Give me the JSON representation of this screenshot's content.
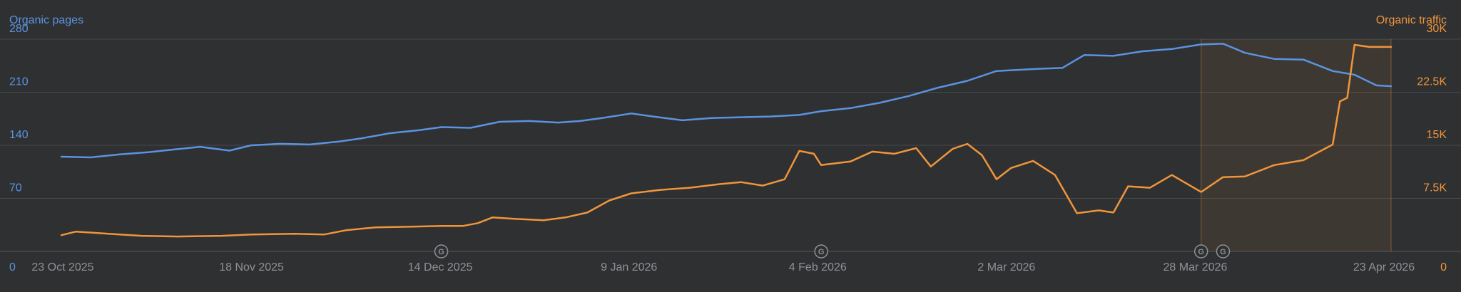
{
  "chart_data": {
    "type": "line",
    "left_axis_title": "Organic pages",
    "right_axis_title": "Organic traffic",
    "y_left_ticks": [
      "0",
      "70",
      "140",
      "210",
      "280"
    ],
    "y_left_range": [
      0,
      280
    ],
    "y_right_ticks": [
      "0",
      "7.5K",
      "15K",
      "22.5K",
      "30K"
    ],
    "y_right_range": [
      0,
      30000
    ],
    "x_tick_labels": [
      "23 Oct 2025",
      "18 Nov 2025",
      "14 Dec 2025",
      "9 Jan 2026",
      "4 Feb 2026",
      "2 Mar 2026",
      "28 Mar 2026",
      "23 Apr 2026"
    ],
    "x_range": [
      "2025-10-23",
      "2026-04-23"
    ],
    "grid": true,
    "colors": {
      "organic_pages": "#5b93e0",
      "organic_traffic": "#f0953b",
      "highlight": "#f0953b"
    },
    "highlight_range": [
      "2026-03-28",
      "2026-04-23"
    ],
    "annotations": [
      {
        "date": "2025-12-14",
        "label": "G"
      },
      {
        "date": "2026-02-04",
        "label": "G"
      },
      {
        "date": "2026-03-28",
        "label": "G"
      },
      {
        "date": "2026-03-31",
        "label": "G"
      }
    ],
    "series": [
      {
        "name": "Organic pages",
        "axis": "left",
        "points": [
          [
            "2025-10-23",
            125
          ],
          [
            "2025-10-27",
            124
          ],
          [
            "2025-10-31",
            128
          ],
          [
            "2025-11-04",
            131
          ],
          [
            "2025-11-08",
            135
          ],
          [
            "2025-11-11",
            138
          ],
          [
            "2025-11-15",
            133
          ],
          [
            "2025-11-18",
            140
          ],
          [
            "2025-11-22",
            142
          ],
          [
            "2025-11-26",
            141
          ],
          [
            "2025-11-30",
            145
          ],
          [
            "2025-12-03",
            149
          ],
          [
            "2025-12-07",
            156
          ],
          [
            "2025-12-11",
            160
          ],
          [
            "2025-12-14",
            164
          ],
          [
            "2025-12-18",
            163
          ],
          [
            "2025-12-22",
            171
          ],
          [
            "2025-12-26",
            172
          ],
          [
            "2025-12-30",
            170
          ],
          [
            "2026-01-02",
            172
          ],
          [
            "2026-01-05",
            176
          ],
          [
            "2026-01-09",
            182
          ],
          [
            "2026-01-12",
            178
          ],
          [
            "2026-01-16",
            173
          ],
          [
            "2026-01-20",
            176
          ],
          [
            "2026-01-24",
            177
          ],
          [
            "2026-01-28",
            178
          ],
          [
            "2026-02-01",
            180
          ],
          [
            "2026-02-04",
            185
          ],
          [
            "2026-02-08",
            189
          ],
          [
            "2026-02-12",
            196
          ],
          [
            "2026-02-16",
            205
          ],
          [
            "2026-02-20",
            216
          ],
          [
            "2026-02-24",
            225
          ],
          [
            "2026-02-28",
            238
          ],
          [
            "2026-03-02",
            239
          ],
          [
            "2026-03-06",
            241
          ],
          [
            "2026-03-09",
            242
          ],
          [
            "2026-03-12",
            259
          ],
          [
            "2026-03-16",
            258
          ],
          [
            "2026-03-20",
            264
          ],
          [
            "2026-03-24",
            267
          ],
          [
            "2026-03-28",
            273
          ],
          [
            "2026-03-31",
            274
          ],
          [
            "2026-04-03",
            262
          ],
          [
            "2026-04-07",
            254
          ],
          [
            "2026-04-11",
            253
          ],
          [
            "2026-04-15",
            238
          ],
          [
            "2026-04-18",
            233
          ],
          [
            "2026-04-21",
            219
          ],
          [
            "2026-04-23",
            218
          ]
        ]
      },
      {
        "name": "Organic traffic",
        "axis": "right",
        "points": [
          [
            "2025-10-23",
            2300
          ],
          [
            "2025-10-25",
            2800
          ],
          [
            "2025-10-28",
            2600
          ],
          [
            "2025-10-31",
            2400
          ],
          [
            "2025-11-03",
            2200
          ],
          [
            "2025-11-08",
            2100
          ],
          [
            "2025-11-14",
            2200
          ],
          [
            "2025-11-18",
            2400
          ],
          [
            "2025-11-24",
            2500
          ],
          [
            "2025-11-28",
            2400
          ],
          [
            "2025-12-01",
            3000
          ],
          [
            "2025-12-05",
            3400
          ],
          [
            "2025-12-10",
            3500
          ],
          [
            "2025-12-14",
            3600
          ],
          [
            "2025-12-17",
            3600
          ],
          [
            "2025-12-19",
            4000
          ],
          [
            "2025-12-21",
            4800
          ],
          [
            "2025-12-24",
            4600
          ],
          [
            "2025-12-28",
            4400
          ],
          [
            "2025-12-31",
            4800
          ],
          [
            "2026-01-03",
            5500
          ],
          [
            "2026-01-06",
            7200
          ],
          [
            "2026-01-09",
            8200
          ],
          [
            "2026-01-13",
            8700
          ],
          [
            "2026-01-17",
            9000
          ],
          [
            "2026-01-21",
            9500
          ],
          [
            "2026-01-24",
            9800
          ],
          [
            "2026-01-27",
            9300
          ],
          [
            "2026-01-30",
            10200
          ],
          [
            "2026-02-01",
            14200
          ],
          [
            "2026-02-03",
            13800
          ],
          [
            "2026-02-04",
            12200
          ],
          [
            "2026-02-08",
            12700
          ],
          [
            "2026-02-11",
            14100
          ],
          [
            "2026-02-14",
            13800
          ],
          [
            "2026-02-17",
            14600
          ],
          [
            "2026-02-19",
            12000
          ],
          [
            "2026-02-22",
            14500
          ],
          [
            "2026-02-24",
            15200
          ],
          [
            "2026-02-26",
            13600
          ],
          [
            "2026-02-28",
            10200
          ],
          [
            "2026-03-02",
            11800
          ],
          [
            "2026-03-05",
            12800
          ],
          [
            "2026-03-08",
            10800
          ],
          [
            "2026-03-11",
            5400
          ],
          [
            "2026-03-14",
            5800
          ],
          [
            "2026-03-16",
            5500
          ],
          [
            "2026-03-18",
            9200
          ],
          [
            "2026-03-21",
            9000
          ],
          [
            "2026-03-24",
            10800
          ],
          [
            "2026-03-28",
            8400
          ],
          [
            "2026-03-31",
            10500
          ],
          [
            "2026-04-03",
            10600
          ],
          [
            "2026-04-07",
            12200
          ],
          [
            "2026-04-11",
            12900
          ],
          [
            "2026-04-13",
            14000
          ],
          [
            "2026-04-15",
            15100
          ],
          [
            "2026-04-16",
            21200
          ],
          [
            "2026-04-17",
            21700
          ],
          [
            "2026-04-18",
            29200
          ],
          [
            "2026-04-20",
            28900
          ],
          [
            "2026-04-23",
            28900
          ]
        ]
      }
    ]
  }
}
